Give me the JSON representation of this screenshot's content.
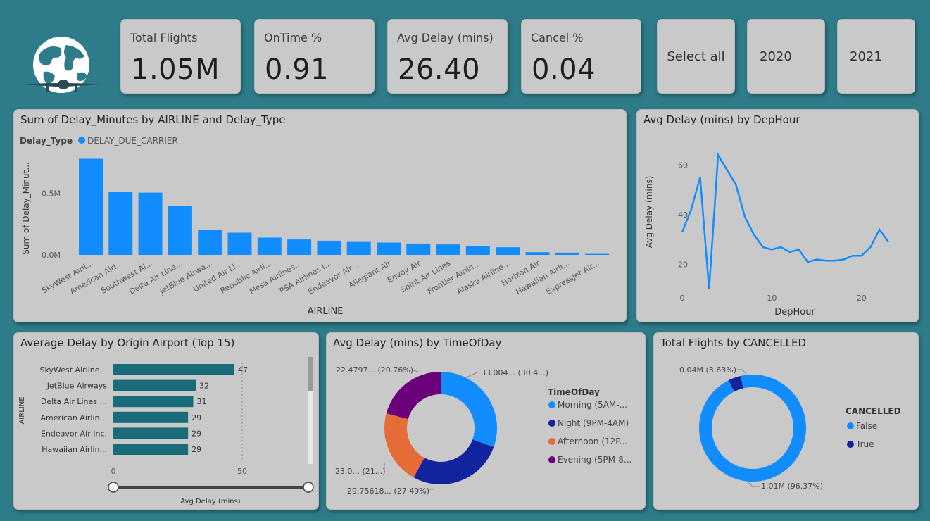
{
  "kpis": [
    {
      "label": "Total Flights",
      "value": "1.05M"
    },
    {
      "label": "OnTime %",
      "value": "0.91"
    },
    {
      "label": "Avg Delay (mins)",
      "value": "26.40"
    },
    {
      "label": "Cancel %",
      "value": "0.04"
    }
  ],
  "slicers": [
    {
      "label": "Select all"
    },
    {
      "label": "2020"
    },
    {
      "label": "2021"
    }
  ],
  "logo": {
    "icon": "globe-airplane-icon"
  },
  "colors": {
    "primary_blue": "#118dff",
    "dark_blue": "#12239e",
    "orange": "#e66c37",
    "purple": "#6b007b",
    "teal_bar": "#1a6b7a",
    "background": "#2e7c8a",
    "card": "#c9c9c9"
  },
  "chart_data": [
    {
      "id": "delay-by-airline",
      "type": "bar",
      "title": "Sum of Delay_Minutes by AIRLINE and Delay_Type",
      "legend_title": "Delay_Type",
      "series": [
        {
          "name": "DELAY_DUE_CARRIER",
          "values": [
            780000,
            510000,
            505000,
            395000,
            200000,
            180000,
            140000,
            125000,
            115000,
            105000,
            100000,
            92000,
            85000,
            70000,
            62000,
            22000,
            18000,
            8000
          ]
        }
      ],
      "categories": [
        "SkyWest Airli...",
        "American Airl...",
        "Southwest Ai...",
        "Delta Air Line...",
        "JetBlue Airwa...",
        "United Air Li...",
        "Republic Airli...",
        "Mesa Airlines...",
        "PSA Airlines I...",
        "Endeavor Air ...",
        "Allegiant Air",
        "Envoy Air",
        "Spirit Air Lines",
        "Frontier Airlin...",
        "Alaska Airline...",
        "Horizon Air",
        "Hawaiian Airli...",
        "ExpressJet Air..."
      ],
      "xlabel": "AIRLINE",
      "ylabel": "Sum of Delay_Minut...",
      "yticks": [
        "0.0M",
        "0.5M"
      ],
      "ylim": [
        0,
        800000
      ]
    },
    {
      "id": "delay-by-hour",
      "type": "line",
      "title": "Avg Delay (mins) by DepHour",
      "x": [
        0,
        1,
        2,
        3,
        4,
        5,
        6,
        7,
        8,
        9,
        10,
        11,
        12,
        13,
        14,
        15,
        16,
        17,
        18,
        19,
        20,
        21,
        22,
        23
      ],
      "values": [
        33,
        42,
        55,
        10,
        64,
        58,
        52,
        39,
        32,
        27,
        26,
        27,
        25,
        26,
        21,
        22,
        21.5,
        21.5,
        22,
        23.5,
        23.5,
        27,
        34,
        29
      ],
      "xlabel": "DepHour",
      "ylabel": "Avg Delay (mins)",
      "xticks": [
        "0",
        "10",
        "20"
      ],
      "yticks": [
        "20",
        "40",
        "60"
      ],
      "xlim": [
        0,
        23
      ],
      "ylim": [
        8,
        68
      ]
    },
    {
      "id": "delay-by-origin",
      "type": "bar",
      "orientation": "horizontal",
      "title": "Average Delay by Origin Airport (Top 15)",
      "categories": [
        "SkyWest Airline...",
        "JetBlue Airways",
        "Delta Air Lines ...",
        "American Airlin...",
        "Endeavor Air Inc.",
        "Hawaiian Airlin..."
      ],
      "values": [
        47,
        32,
        31,
        29,
        29,
        29
      ],
      "data_labels": [
        "47",
        "32",
        "31",
        "29",
        "29",
        "29"
      ],
      "ylabel": "AIRLINE",
      "xticks": [
        "0",
        "50"
      ],
      "xlim": [
        0,
        55
      ],
      "slider_label": "Avg Delay (mins)"
    },
    {
      "id": "delay-by-timeofday",
      "type": "pie",
      "donut": true,
      "title": "Avg Delay (mins) by TimeOfDay",
      "legend_title": "TimeOfDay",
      "labels": [
        "Morning (5AM-...",
        "Night (9PM-4AM)",
        "Afternoon (12P...",
        "Evening (5PM-8..."
      ],
      "values": [
        33.004,
        29.75618,
        23.0,
        22.4797
      ],
      "percents": [
        30.4,
        27.49,
        21.0,
        20.76
      ],
      "data_labels": [
        "33.004... (30.4...)",
        "29.75618... (27.49%)",
        "23.0... (21...)",
        "22.4797... (20.76%)"
      ]
    },
    {
      "id": "flights-by-cancelled",
      "type": "pie",
      "donut": true,
      "title": "Total Flights by CANCELLED",
      "legend_title": "CANCELLED",
      "labels": [
        "False",
        "True"
      ],
      "values": [
        1.01,
        0.04
      ],
      "percents": [
        96.37,
        3.63
      ],
      "data_labels": [
        "1.01M (96.37%)",
        "0.04M (3.63%)"
      ]
    }
  ]
}
